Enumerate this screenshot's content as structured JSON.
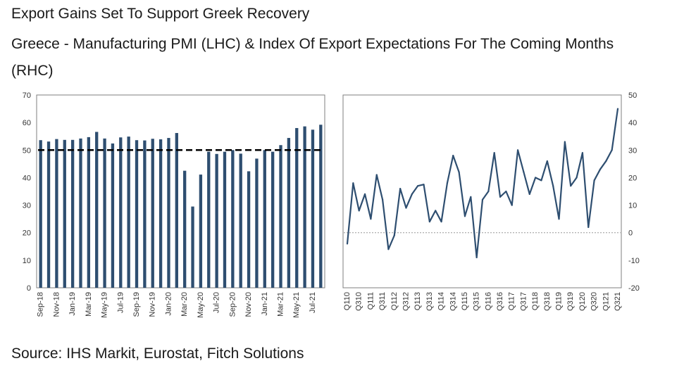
{
  "header": {
    "title": "Export Gains Set To Support Greek Recovery",
    "subtitle": "Greece - Manufacturing PMI (LHC) & Index Of Export Expectations For The Coming Months (RHC)"
  },
  "footer": {
    "source": "Source: IHS Markit, Eurostat, Fitch Solutions"
  },
  "colors": {
    "series": "#2e4e70",
    "reference_line": "#000000",
    "zero_line": "#999999",
    "frame": "#7f7f7f"
  },
  "chart_data": [
    {
      "type": "bar",
      "name": "pmi",
      "ylim": [
        0,
        70
      ],
      "yticks": [
        0,
        10,
        20,
        30,
        40,
        50,
        60,
        70
      ],
      "reference_line": {
        "value": 50,
        "style": "dashed"
      },
      "categories": [
        "Sep-18",
        "Oct-18",
        "Nov-18",
        "Dec-18",
        "Jan-19",
        "Feb-19",
        "Mar-19",
        "Apr-19",
        "May-19",
        "Jun-19",
        "Jul-19",
        "Aug-19",
        "Sep-19",
        "Oct-19",
        "Nov-19",
        "Dec-19",
        "Jan-20",
        "Feb-20",
        "Mar-20",
        "Apr-20",
        "May-20",
        "Jun-20",
        "Jul-20",
        "Aug-20",
        "Sep-20",
        "Oct-20",
        "Nov-20",
        "Dec-20",
        "Jan-21",
        "Feb-21",
        "Mar-21",
        "Apr-21",
        "May-21",
        "Jun-21",
        "Jul-21",
        "Aug-21"
      ],
      "tick_labels": [
        "Sep-18",
        "",
        "Nov-18",
        "",
        "Jan-19",
        "",
        "Mar-19",
        "",
        "May-19",
        "",
        "Jul-19",
        "",
        "Sep-19",
        "",
        "Nov-19",
        "",
        "Jan-20",
        "",
        "Mar-20",
        "",
        "May-20",
        "",
        "Jul-20",
        "",
        "Sep-20",
        "",
        "Nov-20",
        "",
        "Jan-21",
        "",
        "Mar-21",
        "",
        "May-21",
        "",
        "Jul-21",
        ""
      ],
      "values": [
        53.6,
        53.1,
        54.0,
        53.7,
        53.7,
        54.2,
        54.7,
        56.6,
        54.2,
        52.4,
        54.6,
        54.9,
        53.6,
        53.5,
        54.1,
        53.9,
        54.4,
        56.2,
        42.5,
        29.5,
        41.1,
        49.4,
        48.6,
        49.4,
        50.0,
        48.7,
        42.3,
        46.9,
        50.0,
        49.4,
        51.8,
        54.4,
        58.0,
        58.6,
        57.4,
        59.2
      ]
    },
    {
      "type": "line",
      "name": "export_expectations",
      "ylim": [
        -20,
        50
      ],
      "yticks": [
        -20,
        -10,
        0,
        10,
        20,
        30,
        40,
        50
      ],
      "zero_line": {
        "value": 0,
        "style": "dotted"
      },
      "x": [
        "Q110",
        "Q210",
        "Q310",
        "Q410",
        "Q111",
        "Q211",
        "Q311",
        "Q411",
        "Q112",
        "Q212",
        "Q312",
        "Q412",
        "Q113",
        "Q213",
        "Q313",
        "Q413",
        "Q114",
        "Q214",
        "Q314",
        "Q414",
        "Q115",
        "Q215",
        "Q315",
        "Q415",
        "Q116",
        "Q216",
        "Q316",
        "Q416",
        "Q117",
        "Q217",
        "Q317",
        "Q417",
        "Q118",
        "Q218",
        "Q318",
        "Q418",
        "Q119",
        "Q219",
        "Q319",
        "Q419",
        "Q120",
        "Q220",
        "Q320",
        "Q420",
        "Q121",
        "Q221",
        "Q321"
      ],
      "tick_labels": [
        "Q110",
        "",
        "Q310",
        "",
        "Q111",
        "",
        "Q311",
        "",
        "Q112",
        "",
        "Q312",
        "",
        "Q113",
        "",
        "Q313",
        "",
        "Q114",
        "",
        "Q314",
        "",
        "Q115",
        "",
        "Q315",
        "",
        "Q116",
        "",
        "Q316",
        "",
        "Q117",
        "",
        "Q317",
        "",
        "Q118",
        "",
        "Q318",
        "",
        "Q119",
        "",
        "Q319",
        "",
        "Q120",
        "",
        "Q320",
        "",
        "Q121",
        "",
        "Q321"
      ],
      "values": [
        -4,
        18,
        8,
        14,
        5,
        21,
        12,
        -6,
        -1,
        16,
        9,
        14,
        17,
        17.5,
        4,
        8,
        4,
        18,
        28,
        22,
        6,
        13,
        -9,
        12,
        15,
        29,
        13,
        15,
        10,
        30,
        22,
        14,
        20,
        19,
        26,
        17,
        5,
        33,
        17,
        20,
        29,
        2,
        19,
        23,
        26,
        30,
        45
      ]
    }
  ]
}
